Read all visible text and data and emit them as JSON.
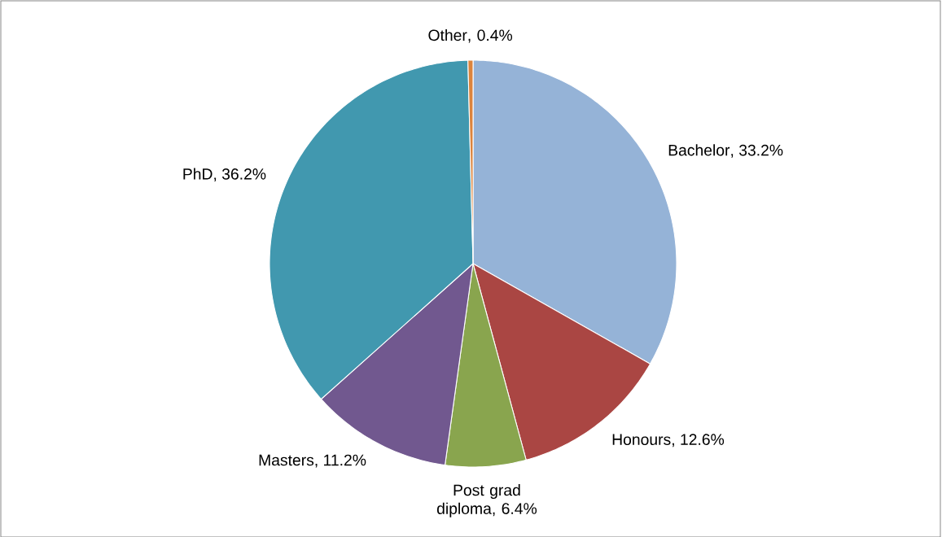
{
  "chart_data": {
    "type": "pie",
    "categories": [
      "Bachelor",
      "Honours",
      "Post grad diploma",
      "Masters",
      "PhD",
      "Other"
    ],
    "values": [
      33.2,
      12.6,
      6.4,
      11.2,
      36.2,
      0.4
    ],
    "value_labels": [
      ", 33.2%",
      ", 12.6%",
      ", 6.4%",
      ", 11.2%",
      ", 36.2%",
      ", 0.4%"
    ],
    "colors": [
      "#95b3d7",
      "#aa4643",
      "#89a54e",
      "#71588f",
      "#4198af",
      "#db843d"
    ]
  }
}
